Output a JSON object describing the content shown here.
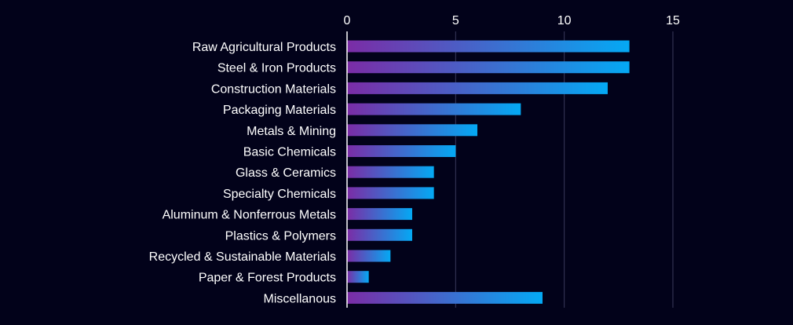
{
  "chart_data": {
    "type": "bar",
    "orientation": "horizontal",
    "categories": [
      "Raw Agricultural Products",
      "Steel & Iron Products",
      "Construction Materials",
      "Packaging Materials",
      "Metals & Mining",
      "Basic Chemicals",
      "Glass & Ceramics",
      "Specialty Chemicals",
      "Aluminum & Nonferrous Metals",
      "Plastics & Polymers",
      "Recycled & Sustainable Materials",
      "Paper & Forest Products",
      "Miscellanous"
    ],
    "values": [
      13,
      13,
      12,
      8,
      6,
      5,
      4,
      4,
      3,
      3,
      2,
      1,
      9
    ],
    "xlim": [
      0,
      15
    ],
    "xticks": [
      0,
      5,
      10,
      15
    ],
    "xtick_labels": [
      "0",
      "5",
      "10",
      "15"
    ],
    "x_axis_position": "top",
    "grid": true,
    "title": "",
    "xlabel": "",
    "ylabel": ""
  },
  "colors": {
    "background": "#02021a",
    "bar_gradient_start": "#7b2ca6",
    "bar_gradient_end": "#04a9f4",
    "grid": "#3a3a5c",
    "axis": "#ffffff",
    "text": "#ffffff"
  }
}
